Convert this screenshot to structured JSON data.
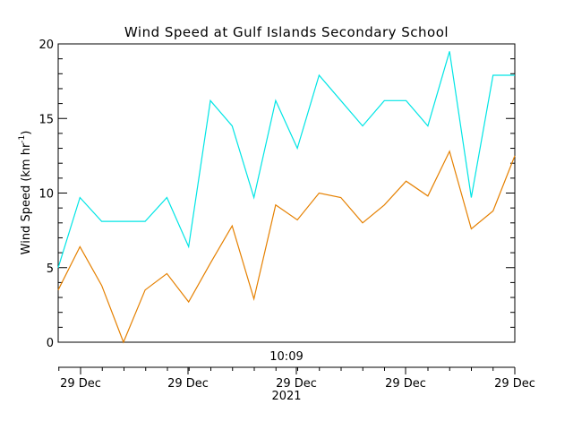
{
  "chart_data": {
    "type": "line",
    "title": "Wind Speed at Gulf Islands Secondary School",
    "ylabel": {
      "main": "Wind Speed (km hr",
      "sup": "-1",
      "close": ")"
    },
    "ylim": [
      0,
      20
    ],
    "yticks": [
      0,
      5,
      10,
      15,
      20
    ],
    "grid": false,
    "legend": "none",
    "time_label": "10:09",
    "year_label": "2021",
    "xtick_labels": [
      "29 Dec",
      "29 Dec",
      "29 Dec",
      "29 Dec",
      "29 Dec"
    ],
    "series": [
      {
        "color": "#00e5e5",
        "values": [
          5.0,
          9.7,
          8.1,
          8.1,
          8.1,
          9.7,
          6.4,
          16.2,
          14.5,
          9.7,
          16.2,
          13.0,
          17.9,
          16.2,
          14.5,
          16.2,
          16.2,
          14.5,
          19.5,
          9.7,
          17.9,
          17.9
        ]
      },
      {
        "color": "#e58000",
        "values": [
          3.5,
          6.4,
          3.8,
          0.0,
          3.5,
          4.6,
          2.7,
          5.3,
          7.8,
          2.9,
          9.2,
          8.2,
          10.0,
          9.7,
          8.0,
          9.2,
          10.8,
          9.8,
          12.8,
          7.6,
          8.8,
          12.5
        ]
      }
    ]
  }
}
